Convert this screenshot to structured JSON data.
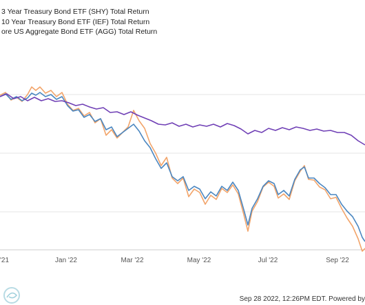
{
  "chart_data": {
    "type": "line",
    "title": "",
    "xlabel": "",
    "ylabel": "",
    "x_ticks": [
      "'21",
      "Jan '22",
      "Mar '22",
      "May '22",
      "Jul '22",
      "Sep '22"
    ],
    "y_gridlines": "on",
    "legend_placement": "top-left",
    "series": [
      {
        "name": "3 Year Treasury Bond ETF (SHY) Total Return",
        "color": "#6f3fb5",
        "values": []
      },
      {
        "name": "10 Year Treasury Bond ETF (IEF) Total Return",
        "color": "#f2a46a",
        "values": []
      },
      {
        "name": "ore US Aggregate Bond ETF (AGG) Total Return",
        "color": "#4a86c0",
        "values": []
      }
    ],
    "footer": "Sep 28 2022, 12:26PM EDT. Powered by"
  }
}
